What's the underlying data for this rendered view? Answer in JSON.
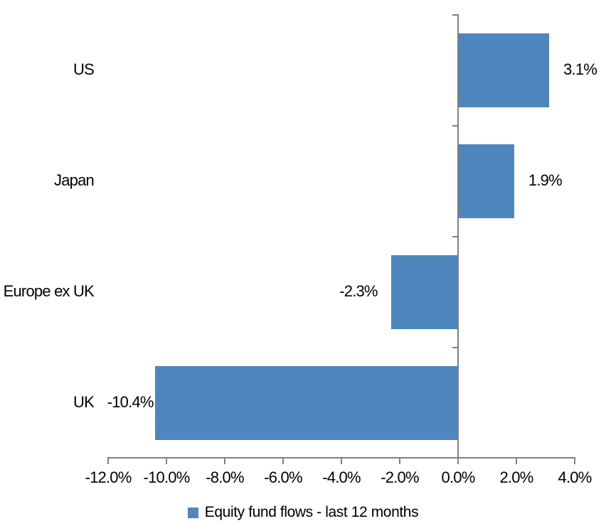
{
  "chart_data": {
    "type": "bar",
    "orientation": "horizontal",
    "title": "",
    "categories": [
      "US",
      "Japan",
      "Europe ex UK",
      "UK"
    ],
    "values": [
      3.1,
      1.9,
      -2.3,
      -10.4
    ],
    "data_labels": [
      "3.1%",
      "1.9%",
      "-2.3%",
      "-10.4%"
    ],
    "series": [
      {
        "name": "Equity fund flows - last 12 months",
        "values": [
          3.1,
          1.9,
          -2.3,
          -10.4
        ]
      }
    ],
    "x_axis": {
      "min": -12,
      "max": 4,
      "step": 2,
      "tick_labels": [
        "-12.0%",
        "-10.0%",
        "-8.0%",
        "-6.0%",
        "-4.0%",
        "-2.0%",
        "0.0%",
        "2.0%",
        "4.0%"
      ]
    },
    "y_axis": {
      "label": ""
    },
    "grid": false,
    "legend": {
      "position": "bottom",
      "entries": [
        {
          "label": "Equity fund flows - last 12 months",
          "color": "#4E87BE"
        }
      ]
    },
    "colors": {
      "bar": "#4E87BE",
      "axis": "#808080",
      "text": "#000000",
      "background": "#FFFFFF"
    }
  }
}
